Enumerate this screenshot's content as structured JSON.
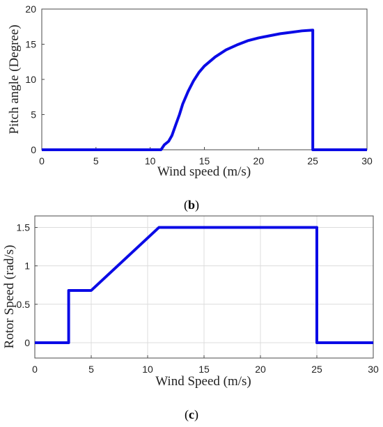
{
  "chart_data": [
    {
      "type": "line",
      "panel": "b",
      "caption": "b",
      "xlabel": "Wind speed (m/s)",
      "ylabel": "Pitch angle (Degree)",
      "xlim": [
        0,
        30
      ],
      "ylim": [
        0,
        20
      ],
      "xticks": [
        0,
        5,
        10,
        15,
        20,
        25,
        30
      ],
      "yticks": [
        0,
        5,
        10,
        15,
        20
      ],
      "grid": false,
      "color": "#0b0be6",
      "series": [
        {
          "x": [
            0,
            11.0,
            11.3,
            11.7,
            12.0,
            12.3,
            12.7,
            13.0,
            13.5,
            14.0,
            14.5,
            15.0,
            16.0,
            17.0,
            18.0,
            19.0,
            20.0,
            21.0,
            22.0,
            23.0,
            24.0,
            25.0,
            25.0,
            30.0
          ],
          "y": [
            0,
            0,
            0.7,
            1.2,
            2.0,
            3.3,
            5.0,
            6.5,
            8.3,
            9.8,
            11.0,
            11.9,
            13.2,
            14.2,
            14.9,
            15.5,
            15.9,
            16.2,
            16.5,
            16.7,
            16.9,
            17.0,
            0,
            0
          ]
        }
      ]
    },
    {
      "type": "line",
      "panel": "c",
      "caption": "c",
      "xlabel": "Wind Speed (m/s)",
      "ylabel": "Rotor Speed (rad/s)",
      "xlim": [
        0,
        30
      ],
      "ylim": [
        -0.2,
        1.65
      ],
      "xticks": [
        0,
        5,
        10,
        15,
        20,
        25,
        30
      ],
      "yticks": [
        0,
        0.5,
        1,
        1.5
      ],
      "ytick_labels": [
        "0",
        "0.5",
        "1",
        "1.5"
      ],
      "grid": true,
      "color": "#0b0be6",
      "series": [
        {
          "x": [
            0,
            3.0,
            3.0,
            5.0,
            11.0,
            25.0,
            25.0,
            30.0
          ],
          "y": [
            0,
            0,
            0.68,
            0.68,
            1.5,
            1.5,
            0,
            0
          ]
        }
      ]
    }
  ]
}
